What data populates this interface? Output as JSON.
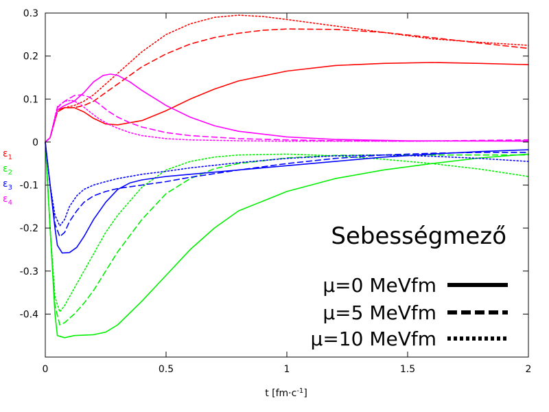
{
  "chart_data": {
    "type": "line",
    "title": "",
    "xlabel_main": "t [fm·c",
    "xlabel_sup": "-1",
    "xlabel_end": "]",
    "ylabel": "",
    "xlim": [
      0,
      2
    ],
    "ylim": [
      -0.5,
      0.3
    ],
    "x_ticks": [
      0,
      0.5,
      1,
      1.5,
      2
    ],
    "x_tick_labels": [
      "0",
      "0.5",
      "1",
      "1.5",
      "2"
    ],
    "y_ticks": [
      0.3,
      0.2,
      0.1,
      0,
      -0.1,
      -0.2,
      -0.3,
      -0.4
    ],
    "y_tick_labels": [
      "0.3",
      "0.2",
      "0.1",
      "0",
      "-0.1",
      "-0.2",
      "-0.3",
      "-0.4"
    ],
    "grid": false,
    "annotation": "Sebességmező",
    "component_labels": [
      {
        "base": "ε",
        "sub": "1",
        "color": "#ff0000"
      },
      {
        "base": "ε",
        "sub": "2",
        "color": "#00ee00"
      },
      {
        "base": "ε",
        "sub": "3",
        "color": "#0000ff"
      },
      {
        "base": "ε",
        "sub": "4",
        "color": "#ff00ff"
      }
    ],
    "legend_position": "bottom-right",
    "legend": [
      {
        "label": "μ=0 MeVfm",
        "dash": "solid"
      },
      {
        "label": "μ=5 MeVfm",
        "dash": "dashed"
      },
      {
        "label": "μ=10 MeVfm",
        "dash": "dotted"
      }
    ],
    "series": [
      {
        "component": "ε1",
        "mu": "0",
        "color": "#ff0000",
        "dash": "solid",
        "x": [
          0,
          0.02,
          0.05,
          0.08,
          0.12,
          0.16,
          0.2,
          0.25,
          0.3,
          0.4,
          0.5,
          0.6,
          0.7,
          0.8,
          1.0,
          1.2,
          1.4,
          1.6,
          1.8,
          2.0
        ],
        "y": [
          0,
          0.01,
          0.075,
          0.08,
          0.08,
          0.07,
          0.055,
          0.042,
          0.04,
          0.05,
          0.073,
          0.1,
          0.123,
          0.142,
          0.165,
          0.178,
          0.183,
          0.185,
          0.183,
          0.18
        ]
      },
      {
        "component": "ε1",
        "mu": "5",
        "color": "#ff0000",
        "dash": "dashed",
        "x": [
          0,
          0.02,
          0.05,
          0.08,
          0.12,
          0.16,
          0.2,
          0.3,
          0.4,
          0.5,
          0.6,
          0.7,
          0.8,
          0.9,
          1.0,
          1.2,
          1.4,
          1.6,
          1.8,
          2.0
        ],
        "y": [
          0,
          0.01,
          0.07,
          0.08,
          0.08,
          0.085,
          0.095,
          0.135,
          0.175,
          0.205,
          0.228,
          0.243,
          0.253,
          0.26,
          0.263,
          0.262,
          0.255,
          0.243,
          0.23,
          0.218
        ]
      },
      {
        "component": "ε1",
        "mu": "10",
        "color": "#ff0000",
        "dash": "dotted",
        "x": [
          0,
          0.02,
          0.05,
          0.08,
          0.12,
          0.16,
          0.2,
          0.3,
          0.4,
          0.5,
          0.6,
          0.7,
          0.8,
          0.9,
          1.0,
          1.2,
          1.4,
          1.6,
          1.8,
          2.0
        ],
        "y": [
          0,
          0.01,
          0.07,
          0.08,
          0.085,
          0.095,
          0.11,
          0.16,
          0.21,
          0.25,
          0.275,
          0.29,
          0.295,
          0.292,
          0.285,
          0.27,
          0.255,
          0.24,
          0.232,
          0.225
        ]
      },
      {
        "component": "ε2",
        "mu": "0",
        "color": "#00ee00",
        "dash": "solid",
        "x": [
          0,
          0.02,
          0.04,
          0.05,
          0.08,
          0.12,
          0.16,
          0.2,
          0.25,
          0.3,
          0.4,
          0.5,
          0.6,
          0.7,
          0.8,
          1.0,
          1.2,
          1.4,
          1.6,
          1.8,
          2.0
        ],
        "y": [
          0,
          -0.2,
          -0.4,
          -0.45,
          -0.455,
          -0.45,
          -0.449,
          -0.448,
          -0.442,
          -0.425,
          -0.37,
          -0.31,
          -0.25,
          -0.2,
          -0.16,
          -0.115,
          -0.085,
          -0.065,
          -0.05,
          -0.037,
          -0.028
        ]
      },
      {
        "component": "ε2",
        "mu": "5",
        "color": "#00ee00",
        "dash": "dashed",
        "x": [
          0,
          0.02,
          0.04,
          0.06,
          0.08,
          0.12,
          0.16,
          0.2,
          0.25,
          0.3,
          0.4,
          0.5,
          0.6,
          0.7,
          0.8,
          1.0,
          1.2,
          1.4,
          1.6,
          1.8,
          2.0
        ],
        "y": [
          0,
          -0.2,
          -0.38,
          -0.425,
          -0.42,
          -0.4,
          -0.375,
          -0.345,
          -0.3,
          -0.255,
          -0.18,
          -0.12,
          -0.085,
          -0.062,
          -0.05,
          -0.037,
          -0.031,
          -0.03,
          -0.03,
          -0.03,
          -0.03
        ]
      },
      {
        "component": "ε2",
        "mu": "10",
        "color": "#00ee00",
        "dash": "dotted",
        "x": [
          0,
          0.02,
          0.04,
          0.06,
          0.08,
          0.12,
          0.16,
          0.2,
          0.25,
          0.3,
          0.4,
          0.5,
          0.6,
          0.7,
          0.8,
          1.0,
          1.2,
          1.4,
          1.6,
          1.8,
          2.0
        ],
        "y": [
          0,
          -0.2,
          -0.36,
          -0.395,
          -0.38,
          -0.34,
          -0.3,
          -0.26,
          -0.21,
          -0.17,
          -0.105,
          -0.065,
          -0.045,
          -0.035,
          -0.03,
          -0.028,
          -0.032,
          -0.04,
          -0.05,
          -0.063,
          -0.08
        ]
      },
      {
        "component": "ε3",
        "mu": "0",
        "color": "#0000ff",
        "dash": "solid",
        "x": [
          0,
          0.02,
          0.04,
          0.05,
          0.07,
          0.1,
          0.13,
          0.16,
          0.2,
          0.25,
          0.3,
          0.35,
          0.4,
          0.5,
          0.6,
          0.8,
          1.0,
          1.2,
          1.4,
          1.6,
          1.8,
          2.0
        ],
        "y": [
          0,
          -0.1,
          -0.2,
          -0.24,
          -0.258,
          -0.257,
          -0.245,
          -0.22,
          -0.18,
          -0.14,
          -0.11,
          -0.095,
          -0.088,
          -0.08,
          -0.075,
          -0.065,
          -0.055,
          -0.045,
          -0.035,
          -0.028,
          -0.022,
          -0.018
        ]
      },
      {
        "component": "ε3",
        "mu": "5",
        "color": "#0000ff",
        "dash": "dashed",
        "x": [
          0,
          0.02,
          0.04,
          0.06,
          0.08,
          0.1,
          0.13,
          0.16,
          0.2,
          0.25,
          0.3,
          0.4,
          0.5,
          0.6,
          0.8,
          1.0,
          1.2,
          1.4,
          1.6,
          1.8,
          2.0
        ],
        "y": [
          0,
          -0.1,
          -0.19,
          -0.22,
          -0.21,
          -0.185,
          -0.16,
          -0.14,
          -0.125,
          -0.115,
          -0.108,
          -0.1,
          -0.092,
          -0.082,
          -0.065,
          -0.05,
          -0.038,
          -0.03,
          -0.026,
          -0.024,
          -0.024
        ]
      },
      {
        "component": "ε3",
        "mu": "10",
        "color": "#0000ff",
        "dash": "dotted",
        "x": [
          0,
          0.02,
          0.04,
          0.06,
          0.08,
          0.1,
          0.13,
          0.16,
          0.2,
          0.25,
          0.3,
          0.4,
          0.5,
          0.6,
          0.8,
          1.0,
          1.2,
          1.4,
          1.6,
          1.8,
          2.0
        ],
        "y": [
          0,
          -0.1,
          -0.17,
          -0.195,
          -0.18,
          -0.15,
          -0.125,
          -0.11,
          -0.1,
          -0.092,
          -0.085,
          -0.075,
          -0.068,
          -0.06,
          -0.048,
          -0.038,
          -0.032,
          -0.03,
          -0.033,
          -0.038,
          -0.045
        ]
      },
      {
        "component": "ε4",
        "mu": "0",
        "color": "#ff00ff",
        "dash": "solid",
        "x": [
          0,
          0.02,
          0.05,
          0.08,
          0.12,
          0.16,
          0.2,
          0.24,
          0.27,
          0.3,
          0.35,
          0.4,
          0.5,
          0.6,
          0.7,
          0.8,
          1.0,
          1.2,
          1.5,
          2.0
        ],
        "y": [
          0,
          0.01,
          0.075,
          0.085,
          0.095,
          0.115,
          0.14,
          0.155,
          0.158,
          0.155,
          0.14,
          0.12,
          0.085,
          0.058,
          0.038,
          0.025,
          0.012,
          0.006,
          0.003,
          0.002
        ]
      },
      {
        "component": "ε4",
        "mu": "5",
        "color": "#ff00ff",
        "dash": "dashed",
        "x": [
          0,
          0.02,
          0.05,
          0.08,
          0.12,
          0.15,
          0.18,
          0.22,
          0.26,
          0.3,
          0.35,
          0.4,
          0.5,
          0.6,
          0.8,
          1.0,
          1.2,
          1.5,
          2.0
        ],
        "y": [
          0,
          0.01,
          0.08,
          0.095,
          0.108,
          0.11,
          0.105,
          0.09,
          0.072,
          0.058,
          0.045,
          0.035,
          0.022,
          0.015,
          0.008,
          0.005,
          0.003,
          0.002,
          0.005
        ]
      },
      {
        "component": "ε4",
        "mu": "10",
        "color": "#ff00ff",
        "dash": "dotted",
        "x": [
          0,
          0.02,
          0.05,
          0.08,
          0.11,
          0.14,
          0.18,
          0.22,
          0.26,
          0.3,
          0.35,
          0.4,
          0.5,
          0.6,
          0.8,
          1.0,
          1.2,
          1.5,
          2.0
        ],
        "y": [
          0,
          0.01,
          0.082,
          0.095,
          0.097,
          0.09,
          0.072,
          0.055,
          0.042,
          0.032,
          0.022,
          0.015,
          0.008,
          0.005,
          0.003,
          0.002,
          0.002,
          0.002,
          0.003
        ]
      }
    ]
  }
}
